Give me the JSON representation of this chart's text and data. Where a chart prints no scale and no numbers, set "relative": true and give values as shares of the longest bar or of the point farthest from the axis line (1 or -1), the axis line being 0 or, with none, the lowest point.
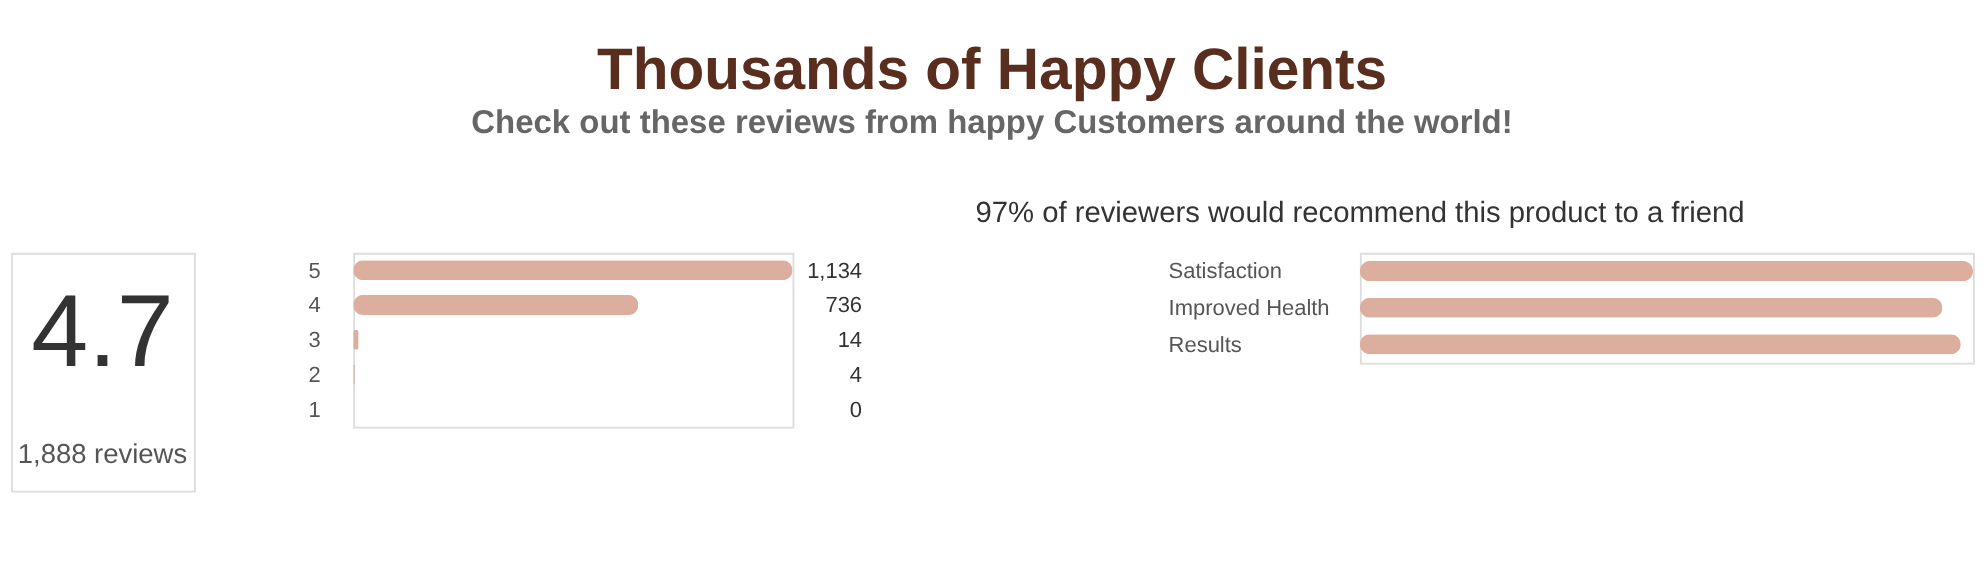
{
  "chart_data": [
    {
      "type": "other",
      "title": "Thousands of Happy Clients",
      "subtitle": "Check out these reviews from happy Customers around the world!",
      "annotations": [
        "4.7",
        "1,888 reviews"
      ]
    },
    {
      "type": "bar",
      "orientation": "horizontal",
      "categories": [
        "5",
        "4",
        "3",
        "2",
        "1"
      ],
      "values": [
        1134,
        736,
        14,
        4,
        0
      ],
      "value_labels": [
        "1,134",
        "736",
        "14",
        "4",
        "0"
      ],
      "color": "#dbae9e",
      "tick_labels": "y"
    },
    {
      "type": "bar",
      "orientation": "horizontal",
      "relative": true,
      "title": "97% of reviewers would recommend this product to a friend",
      "categories": [
        "Satisfaction",
        "Improved Health",
        "Results"
      ],
      "values": [
        1.0,
        0.95,
        0.98
      ],
      "color": "#dbae9e"
    }
  ]
}
